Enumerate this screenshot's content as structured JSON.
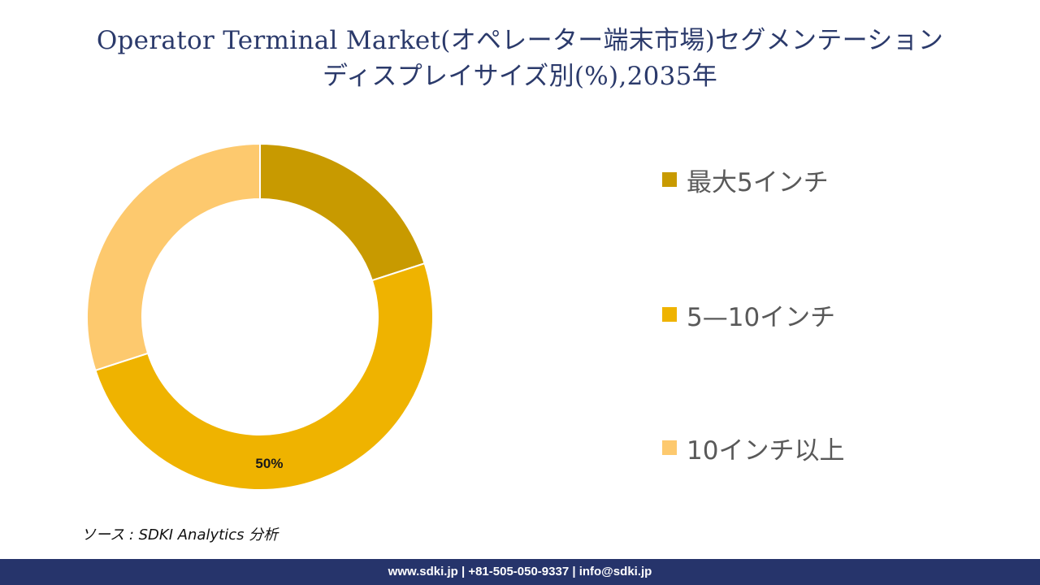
{
  "title": {
    "line1": "Operator Terminal Market(オペレーター端末市場)セグメンテーション",
    "line2": "ディスプレイサイズ別(%),2035年"
  },
  "chart_data": {
    "type": "pie",
    "donut": true,
    "categories": [
      "最大5インチ",
      "5—10インチ",
      "10インチ以上"
    ],
    "values": [
      20,
      50,
      30
    ],
    "colors": [
      "#c89a00",
      "#efb300",
      "#fdc96e"
    ],
    "data_labels": [
      "",
      "50%",
      ""
    ],
    "legend_position": "right"
  },
  "legend": {
    "items": [
      {
        "label": "最大5インチ",
        "color": "#c89a00"
      },
      {
        "label": "5—10インチ",
        "color": "#efb300"
      },
      {
        "label": "10インチ以上",
        "color": "#fdc96e"
      }
    ]
  },
  "source": "ソース : SDKI Analytics 分析",
  "footer": "www.sdki.jp | +81-505-050-9337 | info@sdki.jp"
}
